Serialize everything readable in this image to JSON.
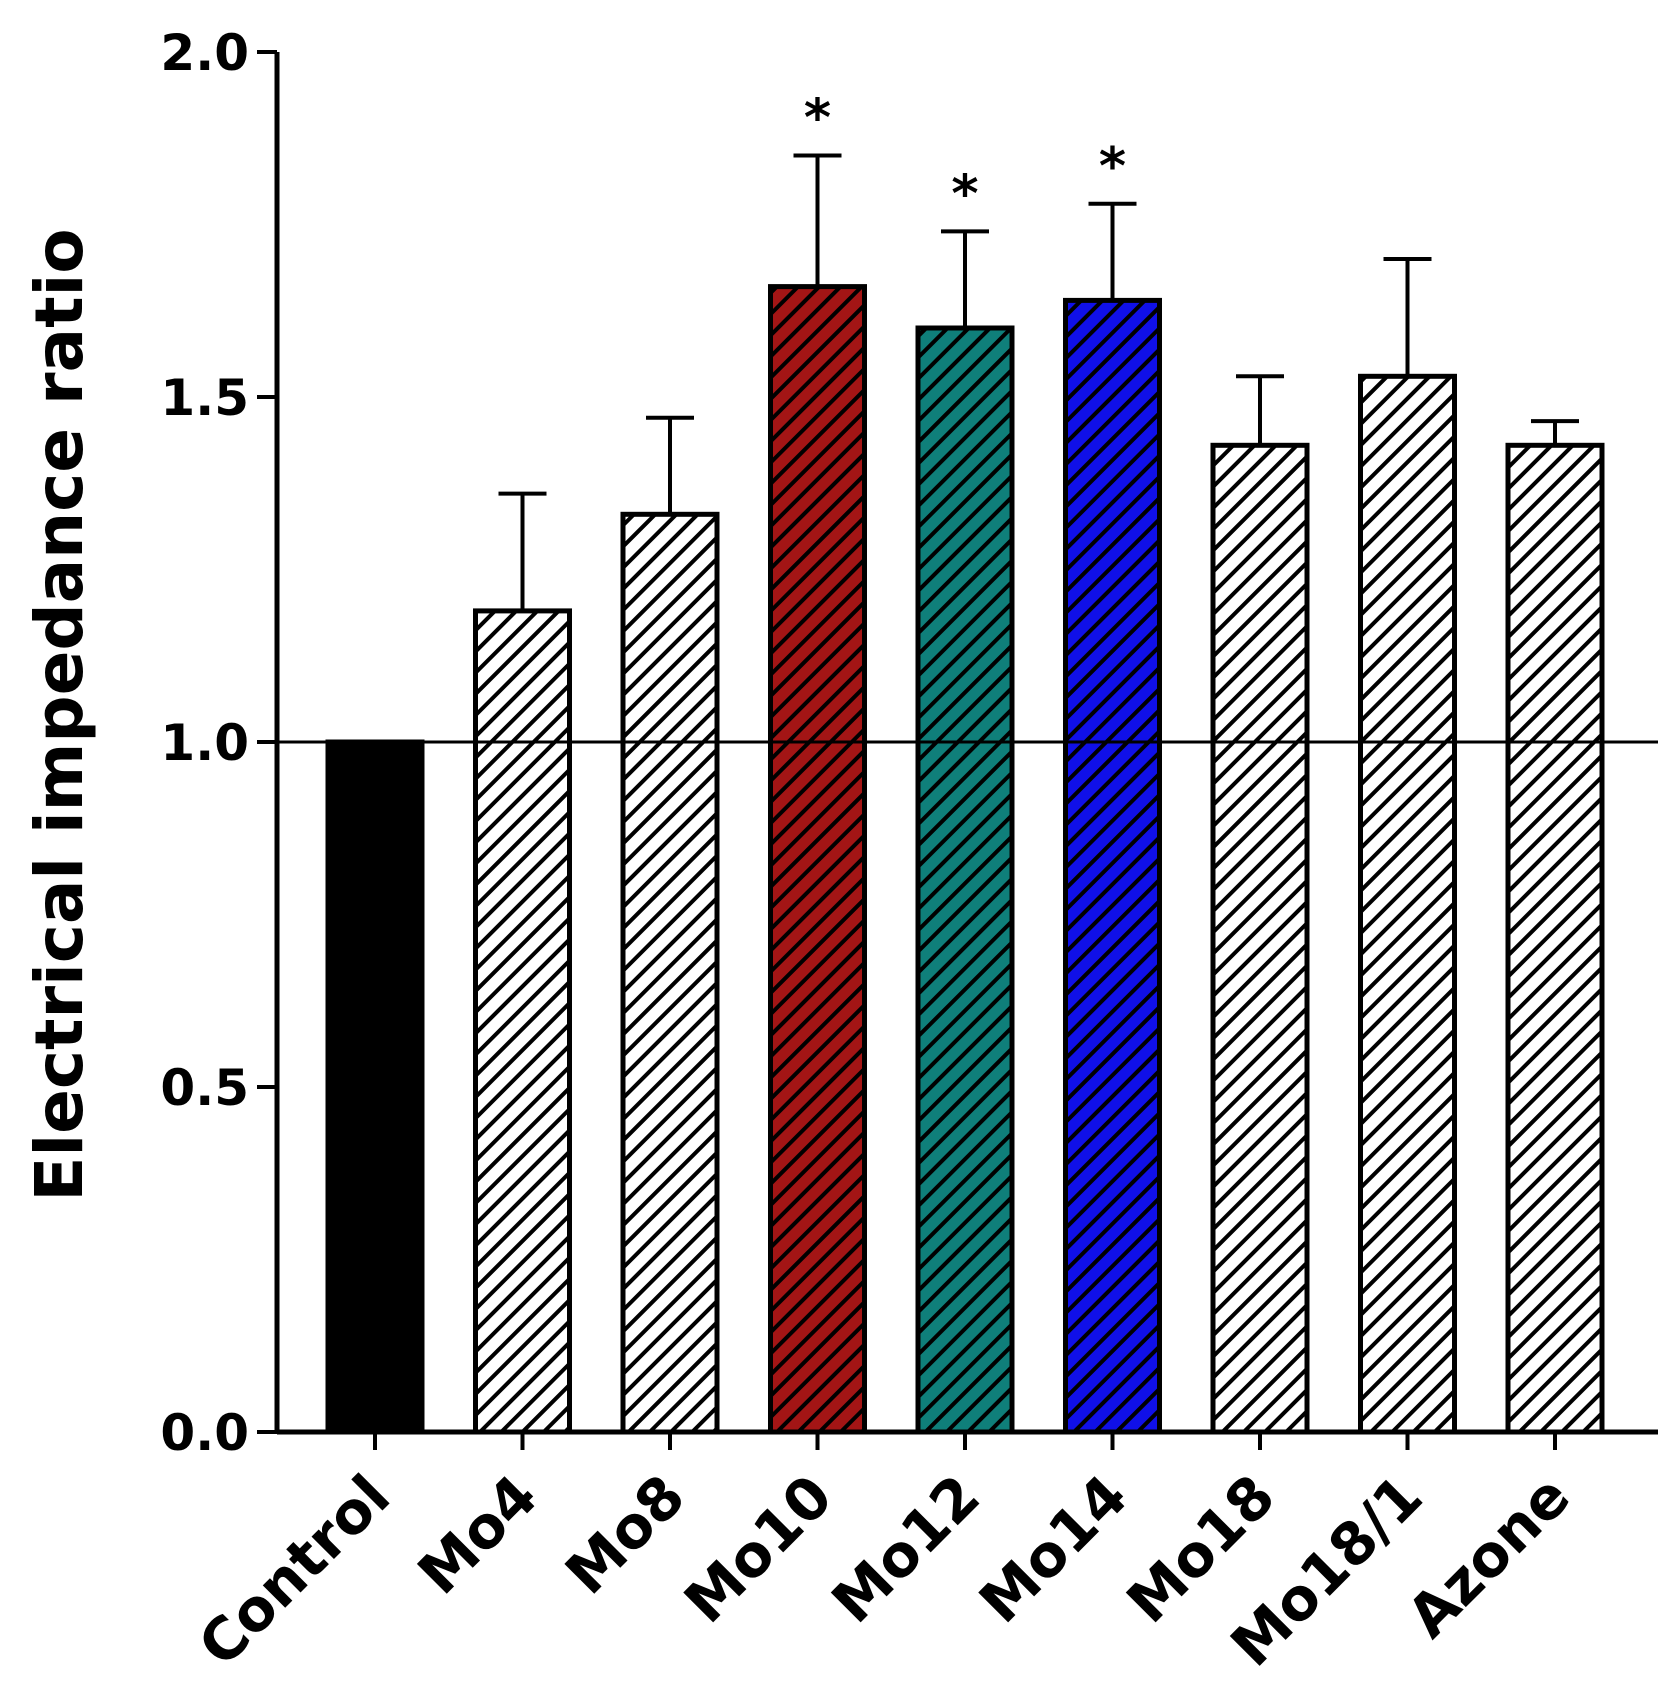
{
  "chart_data": {
    "type": "bar",
    "title": "",
    "xlabel": "",
    "ylabel": "Electrical impedance ratio",
    "ylim": [
      0.0,
      2.0
    ],
    "yticks": [
      "0.0",
      "0.5",
      "1.0",
      "1.5",
      "2.0"
    ],
    "reference_line": 1.0,
    "categories": [
      "Control",
      "Mo4",
      "Mo8",
      "Mo10",
      "Mo12",
      "Mo14",
      "Mo18",
      "Mo18/1",
      "Azone"
    ],
    "values": [
      1.0,
      1.19,
      1.33,
      1.66,
      1.6,
      1.64,
      1.43,
      1.53,
      1.43
    ],
    "errors": [
      0.0,
      0.17,
      0.14,
      0.19,
      0.14,
      0.14,
      0.1,
      0.17,
      0.035
    ],
    "significance": [
      "",
      "",
      "",
      "*",
      "*",
      "*",
      "",
      "",
      ""
    ],
    "fills": [
      "#000000",
      "#ffffff",
      "#ffffff",
      "#a31515",
      "#0f7f7a",
      "#1010e8",
      "#ffffff",
      "#ffffff",
      "#ffffff"
    ],
    "patterns": [
      "solid",
      "hatch",
      "hatch",
      "hatch",
      "hatch",
      "hatch",
      "hatch",
      "hatch",
      "hatch"
    ]
  }
}
